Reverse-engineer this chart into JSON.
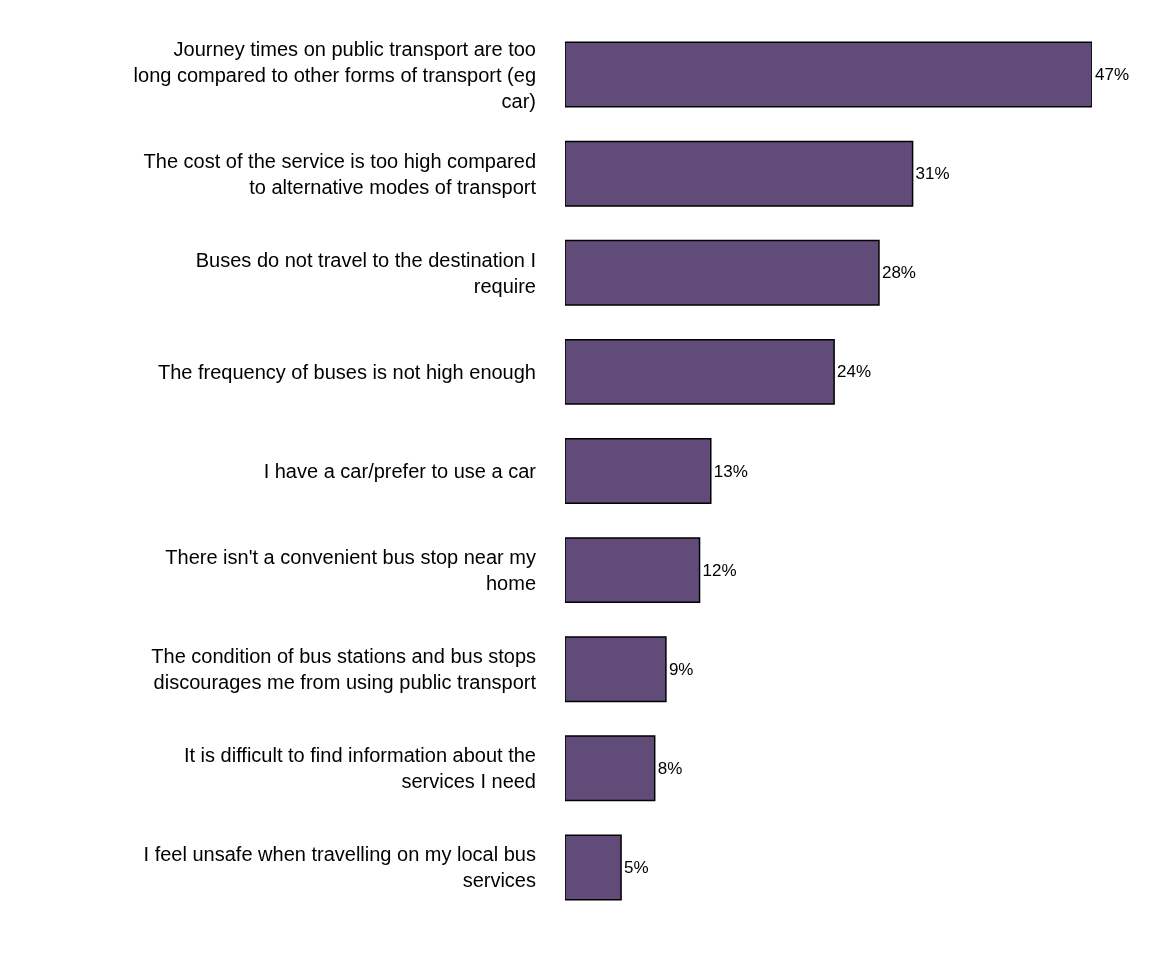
{
  "chart_data": {
    "type": "bar",
    "orientation": "horizontal",
    "tick_labels": "y",
    "categories": [
      "Journey times on public transport are too long compared to other forms of transport (eg car)",
      "The cost of the service is too high compared to alternative modes of transport",
      "Buses do not travel to the destination I require",
      "The frequency of buses is not high enough",
      "I have a car/prefer to use a car",
      "There isn't a convenient bus stop near my home",
      "The condition of bus stations and bus stops discourages me from using public transport",
      "It is difficult to find information about the services I need",
      "I feel unsafe when travelling on my local bus services"
    ],
    "values": [
      47,
      31,
      28,
      24,
      13,
      12,
      9,
      8,
      5
    ],
    "value_labels": [
      "47%",
      "31%",
      "28%",
      "24%",
      "13%",
      "12%",
      "9%",
      "8%",
      "5%"
    ],
    "color": "#614b79"
  }
}
